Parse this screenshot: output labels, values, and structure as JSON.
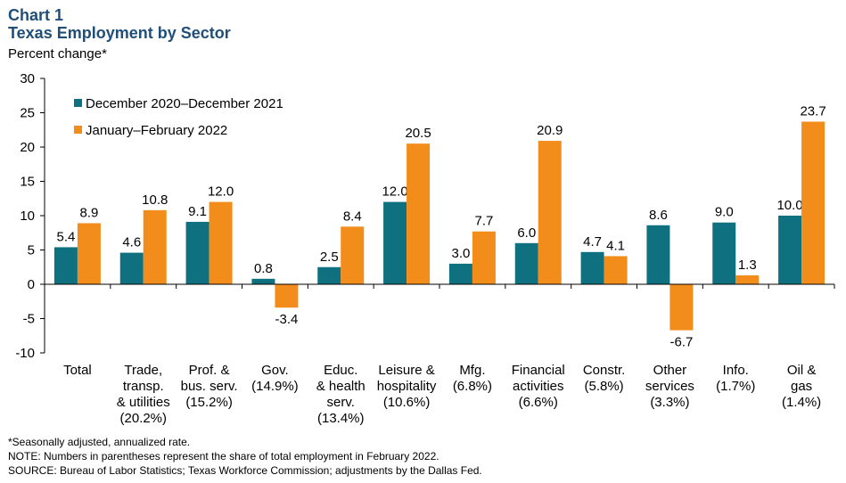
{
  "header": {
    "chart_number": "Chart 1",
    "title": "Texas Employment by Sector",
    "units": "Percent change*"
  },
  "notes": {
    "asterisk": "*Seasonally adjusted, annualized rate.",
    "note": "NOTE: Numbers in parentheses represent the share of total employment in February 2022.",
    "source": "SOURCE: Bureau of Labor Statistics; Texas Workforce Commission; adjustments by the Dallas Fed."
  },
  "chart_data": {
    "type": "bar",
    "title": "Texas Employment by Sector",
    "ylabel": "Percent change*",
    "ylim": [
      -10,
      30
    ],
    "yticks": [
      -10,
      -5,
      0,
      5,
      10,
      15,
      20,
      25,
      30
    ],
    "grid": false,
    "legend_position": "top-left",
    "categories": [
      [
        "Total"
      ],
      [
        "Trade,",
        "transp.",
        "& utilities",
        "(20.2%)"
      ],
      [
        "Prof. &",
        "bus. serv.",
        "(15.2%)"
      ],
      [
        "Gov.",
        "(14.9%)"
      ],
      [
        "Educ.",
        "& health",
        "serv.",
        "(13.4%)"
      ],
      [
        "Leisure &",
        "hospitality",
        "(10.6%)"
      ],
      [
        "Mfg.",
        "(6.8%)"
      ],
      [
        "Financial",
        "activities",
        "(6.6%)"
      ],
      [
        "Constr.",
        "(5.8%)"
      ],
      [
        "Other",
        "services",
        "(3.3%)"
      ],
      [
        "Info.",
        "(1.7%)"
      ],
      [
        "Oil &",
        "gas",
        "(1.4%)"
      ]
    ],
    "series": [
      {
        "name": "December 2020–December 2021",
        "color": "#0f7080",
        "values": [
          5.4,
          4.6,
          9.1,
          0.8,
          2.5,
          12.0,
          3.0,
          6.0,
          4.7,
          8.6,
          9.0,
          10.0
        ],
        "labels": [
          "5.4",
          "4.6",
          "9.1",
          "0.8",
          "2.5",
          "12.0",
          "3.0",
          "6.0",
          "4.7",
          "8.6",
          "9.0",
          "10.0"
        ]
      },
      {
        "name": "January–February  2022",
        "color": "#f28c1a",
        "values": [
          8.9,
          10.8,
          12.0,
          -3.4,
          8.4,
          20.5,
          7.7,
          20.9,
          4.1,
          -6.7,
          1.3,
          23.7
        ],
        "labels": [
          "8.9",
          "10.8",
          "12.0",
          "-3.4",
          "8.4",
          "20.5",
          "7.7",
          "20.9",
          "4.1",
          "-6.7",
          "1.3",
          "23.7"
        ]
      }
    ]
  }
}
